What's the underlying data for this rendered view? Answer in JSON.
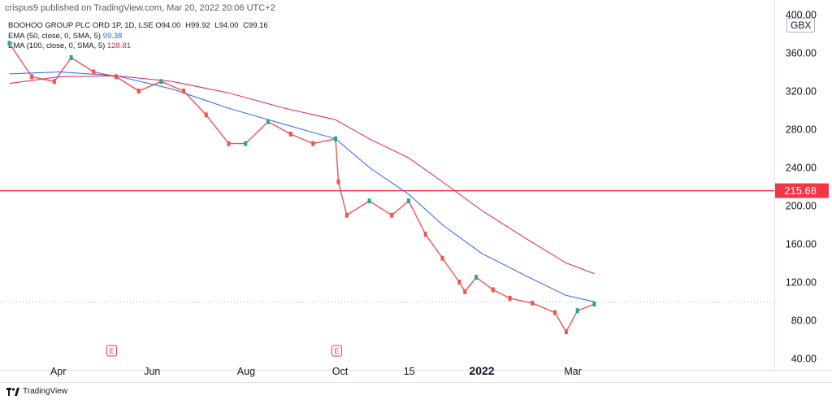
{
  "attribution": "crispus9 published on TradingView.com, Mar 20, 2022 20:06 UTC+2",
  "legend": {
    "symbol_line": "BOOHOO GROUP PLC ORD 1P, 1D, LSE",
    "ohlc": {
      "o": "O94.00",
      "h": "H99.92",
      "l": "L94.00",
      "c": "C99.16"
    },
    "ema50_label": "EMA (50, close, 0, SMA, 5)",
    "ema50_value": "99.38",
    "ema100_label": "EMA (100, close, 0, SMA, 5)",
    "ema100_value": "128.81"
  },
  "currency": "GBX",
  "footer_logo": "TradingView",
  "colors": {
    "up": "#26a69a",
    "down": "#ef5350",
    "ema50": "#2962ff",
    "ema100": "#e91e63",
    "hline": "#f23645"
  },
  "chart_data": {
    "type": "line",
    "title": "BOOHOO GROUP PLC ORD 1P, 1D, LSE",
    "ylim": [
      40,
      400
    ],
    "yticks": [
      "40.00",
      "80.00",
      "120.00",
      "160.00",
      "200.00",
      "240.00",
      "280.00",
      "320.00",
      "360.00",
      "400.00"
    ],
    "xticks": [
      {
        "label": "Apr",
        "t": 2021.247
      },
      {
        "label": "Jun",
        "t": 2021.414
      },
      {
        "label": "Aug",
        "t": 2021.581
      },
      {
        "label": "Oct",
        "t": 2021.748
      },
      {
        "label": "15",
        "t": 2021.871
      },
      {
        "label": "2022",
        "t": 2022.0,
        "bold": true
      },
      {
        "label": "Mar",
        "t": 2022.162
      }
    ],
    "earnings_markers": [
      {
        "label": "E",
        "t": 2021.342
      },
      {
        "label": "E",
        "t": 2021.742
      }
    ],
    "horizontal_line": {
      "value": 215.68,
      "label": "215.68"
    },
    "last_price_dotted": 99.16,
    "series": [
      {
        "name": "BOOHOO GROUP PLC ORD 1P",
        "kind": "price",
        "x": [
          2021.16,
          2021.2,
          2021.24,
          2021.27,
          2021.31,
          2021.35,
          2021.39,
          2021.43,
          2021.47,
          2021.51,
          2021.55,
          2021.58,
          2021.62,
          2021.66,
          2021.7,
          2021.74,
          2021.745,
          2021.76,
          2021.8,
          2021.84,
          2021.87,
          2021.9,
          2021.93,
          2021.96,
          2021.97,
          2021.99,
          2022.02,
          2022.05,
          2022.09,
          2022.13,
          2022.15,
          2022.17,
          2022.2
        ],
        "values": [
          370,
          335,
          330,
          355,
          340,
          335,
          320,
          330,
          320,
          295,
          265,
          265,
          288,
          275,
          265,
          270,
          225,
          190,
          205,
          190,
          205,
          170,
          145,
          120,
          110,
          125,
          112,
          103,
          98,
          88,
          68,
          90,
          97
        ]
      },
      {
        "name": "EMA (50, close, 0, SMA, 5)",
        "kind": "ema50",
        "x": [
          2021.16,
          2021.25,
          2021.35,
          2021.45,
          2021.55,
          2021.65,
          2021.74,
          2021.8,
          2021.87,
          2021.93,
          2022.0,
          2022.08,
          2022.15,
          2022.2
        ],
        "values": [
          338,
          340,
          336,
          322,
          302,
          285,
          270,
          240,
          212,
          180,
          150,
          126,
          106,
          99.38
        ]
      },
      {
        "name": "EMA (100, close, 0, SMA, 5)",
        "kind": "ema100",
        "x": [
          2021.16,
          2021.25,
          2021.35,
          2021.45,
          2021.55,
          2021.65,
          2021.74,
          2021.8,
          2021.87,
          2021.93,
          2022.0,
          2022.08,
          2022.15,
          2022.2
        ],
        "values": [
          328,
          335,
          336,
          330,
          318,
          302,
          290,
          270,
          250,
          225,
          195,
          165,
          140,
          128.81
        ]
      }
    ]
  }
}
